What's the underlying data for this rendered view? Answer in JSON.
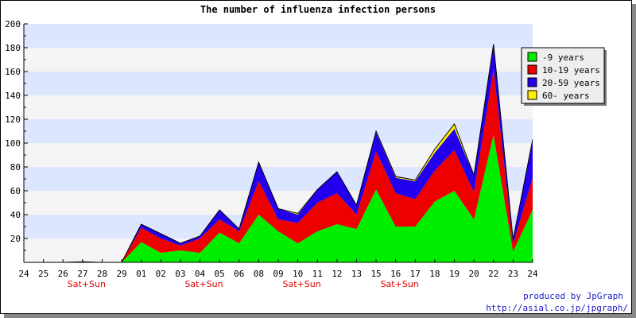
{
  "chart_data": {
    "type": "area",
    "stacked": true,
    "title": "The number of influenza infection persons",
    "xlabel": "",
    "ylabel": "",
    "ylim": [
      0,
      200
    ],
    "yticks": [
      20,
      40,
      60,
      80,
      100,
      120,
      140,
      160,
      180,
      200
    ],
    "categories": [
      "24",
      "25",
      "26",
      "27",
      "28",
      "29",
      "01",
      "02",
      "03",
      "04",
      "05",
      "06",
      "08",
      "09",
      "10",
      "11",
      "12",
      "13",
      "15",
      "16",
      "17",
      "18",
      "19",
      "20",
      "22",
      "23",
      "24"
    ],
    "weekend_marks": [
      {
        "index": 3,
        "label": "Sat+Sun"
      },
      {
        "index": 9,
        "label": "Sat+Sun"
      },
      {
        "index": 14,
        "label": "Sat+Sun"
      },
      {
        "index": 19,
        "label": "Sat+Sun"
      }
    ],
    "grid": "horizontal-bands",
    "legend_position": "top-right",
    "series": [
      {
        "name": "-9 years",
        "color": "#00ee00",
        "values": [
          0,
          0,
          0,
          0,
          0,
          0,
          17,
          8,
          10,
          8,
          25,
          16,
          40,
          26,
          16,
          26,
          32,
          28,
          61,
          30,
          30,
          51,
          60,
          36,
          107,
          9,
          44
        ]
      },
      {
        "name": "10-19 years",
        "color": "#ee0000",
        "values": [
          0,
          0,
          0,
          0,
          0,
          0,
          12,
          12,
          4,
          12,
          11,
          10,
          28,
          10,
          17,
          24,
          26,
          12,
          32,
          28,
          23,
          26,
          34,
          23,
          55,
          6,
          27
        ]
      },
      {
        "name": "20-59 years",
        "color": "#2200ee",
        "values": [
          0,
          0,
          0,
          0,
          0,
          0,
          3,
          4,
          2,
          2,
          8,
          2,
          16,
          9,
          7,
          11,
          18,
          8,
          16,
          13,
          15,
          15,
          18,
          14,
          20,
          4,
          31
        ]
      },
      {
        "name": "60- years",
        "color": "#ffee00",
        "values": [
          0,
          0,
          0,
          0.5,
          0,
          0,
          0,
          0,
          0,
          0,
          0,
          0,
          0,
          0,
          1,
          0,
          0,
          0,
          1,
          1,
          1,
          3,
          4,
          0,
          1,
          0,
          1
        ]
      }
    ]
  },
  "credits": {
    "line1": "produced by JpGraph",
    "line2": "http://asial.co.jp/jpgraph/"
  }
}
